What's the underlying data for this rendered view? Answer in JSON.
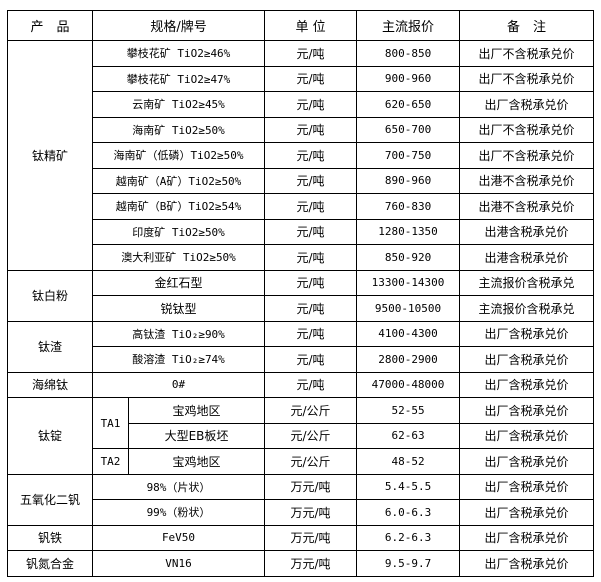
{
  "header": {
    "product": "产　品",
    "spec": "规格/牌号",
    "unit": "单 位",
    "price": "主流报价",
    "note": "备　注"
  },
  "groups": [
    {
      "product": "钛精矿",
      "rows": [
        {
          "spec": "攀枝花矿 TiO2≥46%",
          "unit": "元/吨",
          "price": "800-850",
          "note": "出厂不含税承兑价"
        },
        {
          "spec": "攀枝花矿 TiO2≥47%",
          "unit": "元/吨",
          "price": "900-960",
          "note": "出厂不含税承兑价"
        },
        {
          "spec": "云南矿 TiO2≥45%",
          "unit": "元/吨",
          "price": "620-650",
          "note": "出厂含税承兑价"
        },
        {
          "spec": "海南矿 TiO2≥50%",
          "unit": "元/吨",
          "price": "650-700",
          "note": "出厂不含税承兑价"
        },
        {
          "spec": "海南矿（低磷）TiO2≥50%",
          "unit": "元/吨",
          "price": "700-750",
          "note": "出厂不含税承兑价"
        },
        {
          "spec": "越南矿（A矿）TiO2≥50%",
          "unit": "元/吨",
          "price": "890-960",
          "note": "出港不含税承兑价"
        },
        {
          "spec": "越南矿（B矿）TiO2≥54%",
          "unit": "元/吨",
          "price": "760-830",
          "note": "出港不含税承兑价"
        },
        {
          "spec": "印度矿 TiO2≥50%",
          "unit": "元/吨",
          "price": "1280-1350",
          "note": "出港含税承兑价"
        },
        {
          "spec": "澳大利亚矿 TiO2≥50%",
          "unit": "元/吨",
          "price": "850-920",
          "note": "出港含税承兑价"
        }
      ]
    },
    {
      "product": "钛白粉",
      "rows": [
        {
          "spec": "金红石型",
          "unit": "元/吨",
          "price": "13300-14300",
          "note": "主流报价含税承兑"
        },
        {
          "spec": "锐钛型",
          "unit": "元/吨",
          "price": "9500-10500",
          "note": "主流报价含税承兑"
        }
      ]
    },
    {
      "product": "钛渣",
      "rows": [
        {
          "spec": "高钛渣 TiO₂≥90%",
          "unit": "元/吨",
          "price": "4100-4300",
          "note": "出厂含税承兑价"
        },
        {
          "spec": "酸溶渣 TiO₂≥74%",
          "unit": "元/吨",
          "price": "2800-2900",
          "note": "出厂含税承兑价"
        }
      ]
    },
    {
      "product": "海绵钛",
      "rows": [
        {
          "spec": "0#",
          "unit": "元/吨",
          "price": "47000-48000",
          "note": "出厂含税承兑价"
        }
      ]
    },
    {
      "product": "钛锭",
      "rows": [
        {
          "grade": "TA1",
          "spec": "宝鸡地区",
          "unit": "元/公斤",
          "price": "52-55",
          "note": "出厂含税承兑价"
        },
        {
          "spec": "大型EB板坯",
          "unit": "元/公斤",
          "price": "62-63",
          "note": "出厂含税承兑价"
        },
        {
          "grade": "TA2",
          "spec": "宝鸡地区",
          "unit": "元/公斤",
          "price": "48-52",
          "note": "出厂含税承兑价"
        }
      ]
    },
    {
      "product": "五氧化二钒",
      "rows": [
        {
          "spec": "98%（片状）",
          "unit": "万元/吨",
          "price": "5.4-5.5",
          "note": "出厂含税承兑价"
        },
        {
          "spec": "99%（粉状）",
          "unit": "万元/吨",
          "price": "6.0-6.3",
          "note": "出厂含税承兑价"
        }
      ]
    },
    {
      "product": "钒铁",
      "rows": [
        {
          "spec": "FeV50",
          "unit": "万元/吨",
          "price": "6.2-6.3",
          "note": "出厂含税承兑价"
        }
      ]
    },
    {
      "product": "钒氮合金",
      "rows": [
        {
          "spec": "VN16",
          "unit": "万元/吨",
          "price": "9.5-9.7",
          "note": "出厂含税承兑价"
        }
      ]
    }
  ]
}
